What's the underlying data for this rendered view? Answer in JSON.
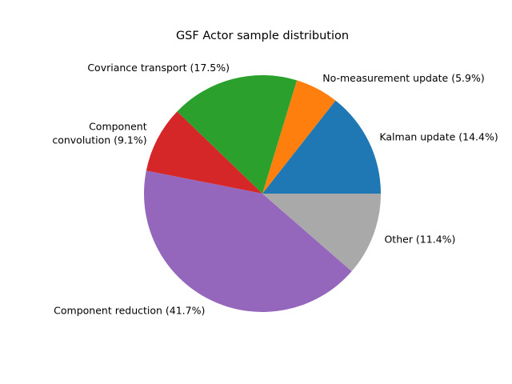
{
  "chart_data": {
    "type": "pie",
    "title": "GSF Actor sample distribution",
    "slices": [
      {
        "label": "Kalman update (14.4%)",
        "value": 14.4,
        "color": "#1f77b4"
      },
      {
        "label": "No-measurement update (5.9%)",
        "value": 5.9,
        "color": "#ff7f0e"
      },
      {
        "label": "Covriance transport (17.5%)",
        "value": 17.5,
        "color": "#2ca02c"
      },
      {
        "label": "Component\nconvolution (9.1%)",
        "value": 9.1,
        "color": "#d62728"
      },
      {
        "label": "Component reduction (41.7%)",
        "value": 41.7,
        "color": "#9467bd"
      },
      {
        "label": "Other (11.4%)",
        "value": 11.4,
        "color": "#a9a9a9"
      }
    ],
    "start_angle_deg": 0,
    "direction": "counterclockwise",
    "legend": "none"
  }
}
